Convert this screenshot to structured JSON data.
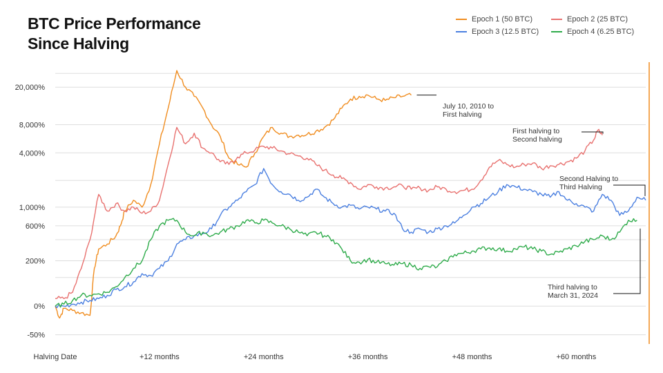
{
  "chart_data": {
    "type": "line",
    "title_lines": [
      "BTC Price Performance",
      "Since Halving"
    ],
    "xlabel": "",
    "ylabel": "",
    "y_scale": "log(1 + return)",
    "x_range_months": [
      0,
      68
    ],
    "ylim_percent": [
      -60,
      38000
    ],
    "grid": "horizontal",
    "legend_position": "top-right",
    "y_ticks": [
      {
        "value": 20000,
        "label": "20,000%"
      },
      {
        "value": 8000,
        "label": "8,000%"
      },
      {
        "value": 4000,
        "label": "4,000%"
      },
      {
        "value": 1000,
        "label": "1,000%"
      },
      {
        "value": 600,
        "label": "600%"
      },
      {
        "value": 200,
        "label": "200%"
      },
      {
        "value": 0,
        "label": "0%"
      },
      {
        "value": -50,
        "label": "-50%"
      }
    ],
    "extra_gridlines": [
      28000,
      2000,
      400,
      100
    ],
    "x_ticks": [
      {
        "value": 0,
        "label": "Halving Date"
      },
      {
        "value": 12,
        "label": "+12 months"
      },
      {
        "value": 24,
        "label": "+24 months"
      },
      {
        "value": 36,
        "label": "+36 months"
      },
      {
        "value": 48,
        "label": "+48 months"
      },
      {
        "value": 60,
        "label": "+60 months"
      }
    ],
    "series": [
      {
        "name": "Epoch 1 (50 BTC)",
        "color": "#F08C1E",
        "months": [
          0,
          0.5,
          1,
          2,
          3,
          4,
          4.5,
          5,
          6,
          7,
          7.5,
          8,
          9,
          10,
          11,
          12,
          13,
          14,
          15,
          16,
          17,
          18,
          19,
          20,
          21,
          22,
          23,
          24,
          25,
          26,
          27,
          28,
          29,
          30,
          31,
          32,
          33,
          34,
          35,
          36,
          37,
          38,
          39,
          40,
          41
        ],
        "values": [
          0,
          -25,
          -5,
          -10,
          -15,
          -20,
          150,
          300,
          350,
          450,
          600,
          900,
          1200,
          1000,
          1800,
          5000,
          12000,
          30000,
          20000,
          16000,
          12000,
          8000,
          6000,
          3500,
          3000,
          2800,
          4000,
          6000,
          7500,
          6500,
          6000,
          6200,
          6300,
          6800,
          7500,
          9000,
          12000,
          15000,
          16000,
          16500,
          15000,
          14500,
          15500,
          16000,
          16500
        ]
      },
      {
        "name": "Epoch 2 (25 BTC)",
        "color": "#E8706E",
        "months": [
          0,
          1,
          2,
          3,
          4,
          5,
          6,
          7,
          8,
          9,
          10,
          11,
          12,
          13,
          14,
          15,
          16,
          17,
          18,
          19,
          20,
          21,
          22,
          23,
          24,
          25,
          26,
          27,
          28,
          29,
          30,
          31,
          32,
          33,
          34,
          35,
          36,
          37,
          38,
          39,
          40,
          41,
          42,
          43,
          44,
          45,
          46,
          47,
          48,
          49,
          50,
          51,
          52,
          53,
          54,
          55,
          56,
          57,
          58,
          59,
          60,
          61,
          62,
          62.5,
          63
        ],
        "values": [
          20,
          20,
          40,
          150,
          400,
          1400,
          900,
          1100,
          900,
          1000,
          850,
          900,
          1200,
          3000,
          7500,
          5000,
          6500,
          4500,
          4000,
          3200,
          3000,
          3600,
          4000,
          4300,
          4700,
          4500,
          4200,
          3900,
          3700,
          3500,
          3000,
          2600,
          2300,
          2100,
          1900,
          1600,
          1800,
          1700,
          1650,
          1700,
          1750,
          1600,
          1650,
          1550,
          1700,
          1600,
          1500,
          1550,
          1600,
          2000,
          2800,
          3300,
          3000,
          2800,
          3000,
          3100,
          2700,
          2900,
          3000,
          3200,
          3500,
          4200,
          5500,
          7000,
          6200
        ]
      },
      {
        "name": "Epoch 3 (12.5 BTC)",
        "color": "#4A7FE0",
        "months": [
          0,
          1,
          2,
          3,
          4,
          5,
          6,
          7,
          8,
          9,
          10,
          11,
          12,
          13,
          14,
          15,
          16,
          17,
          18,
          19,
          20,
          21,
          22,
          23,
          24,
          25,
          26,
          27,
          28,
          29,
          30,
          31,
          32,
          33,
          34,
          35,
          36,
          37,
          38,
          39,
          40,
          41,
          42,
          43,
          44,
          45,
          46,
          47,
          48,
          49,
          50,
          51,
          52,
          53,
          54,
          55,
          56,
          57,
          58,
          59,
          60,
          61,
          62,
          63,
          64,
          65,
          66,
          67,
          68
        ],
        "values": [
          0,
          0,
          5,
          10,
          15,
          20,
          30,
          50,
          60,
          80,
          120,
          110,
          150,
          200,
          350,
          400,
          450,
          480,
          550,
          800,
          1000,
          1200,
          1500,
          1800,
          2700,
          1800,
          1500,
          1400,
          1200,
          1300,
          1600,
          1300,
          1100,
          1000,
          1050,
          950,
          1000,
          950,
          900,
          850,
          550,
          500,
          550,
          500,
          550,
          600,
          650,
          800,
          1000,
          1100,
          1300,
          1500,
          1800,
          1700,
          1600,
          1500,
          1400,
          1300,
          1500,
          1200,
          1100,
          1000,
          900,
          1400,
          1200,
          800,
          900,
          1300,
          1200
        ]
      },
      {
        "name": "Epoch 4 (6.25 BTC)",
        "color": "#2EAB4A",
        "months": [
          0,
          1,
          2,
          3,
          4,
          5,
          6,
          7,
          8,
          9,
          10,
          11,
          12,
          13,
          14,
          15,
          16,
          17,
          18,
          19,
          20,
          21,
          22,
          23,
          24,
          25,
          26,
          27,
          28,
          29,
          30,
          31,
          32,
          33,
          34,
          35,
          36,
          37,
          38,
          39,
          40,
          41,
          42,
          43,
          44,
          45,
          46,
          47,
          48,
          49,
          50,
          51,
          52,
          53,
          54,
          55,
          56,
          57,
          58,
          59,
          60,
          61,
          62,
          63,
          64,
          65,
          66,
          67
        ],
        "values": [
          0,
          5,
          15,
          30,
          30,
          35,
          40,
          60,
          100,
          150,
          200,
          400,
          600,
          700,
          700,
          500,
          450,
          500,
          450,
          500,
          550,
          600,
          700,
          650,
          700,
          650,
          600,
          550,
          500,
          450,
          500,
          450,
          400,
          300,
          200,
          190,
          210,
          190,
          180,
          170,
          180,
          170,
          150,
          160,
          160,
          200,
          250,
          260,
          280,
          300,
          310,
          300,
          280,
          300,
          320,
          300,
          280,
          250,
          270,
          300,
          330,
          380,
          400,
          450,
          400,
          500,
          700,
          700
        ]
      }
    ],
    "annotations": [
      {
        "lines": [
          "July 10, 2010 to",
          "First halving"
        ],
        "series": "Epoch 1 (50 BTC)"
      },
      {
        "lines": [
          "First halving to",
          "Second halving"
        ],
        "series": "Epoch 2 (25 BTC)"
      },
      {
        "lines": [
          "Second Halving to",
          "Third Halving"
        ],
        "series": "Epoch 3 (12.5 BTC)"
      },
      {
        "lines": [
          "Third halving to",
          "March 31, 2024"
        ],
        "series": "Epoch 4 (6.25 BTC)"
      }
    ],
    "colors": {
      "grid": "#DDDDDD",
      "tick_text": "#333333",
      "annotation_line": "#111111",
      "right_border": "#F08C1E"
    }
  }
}
